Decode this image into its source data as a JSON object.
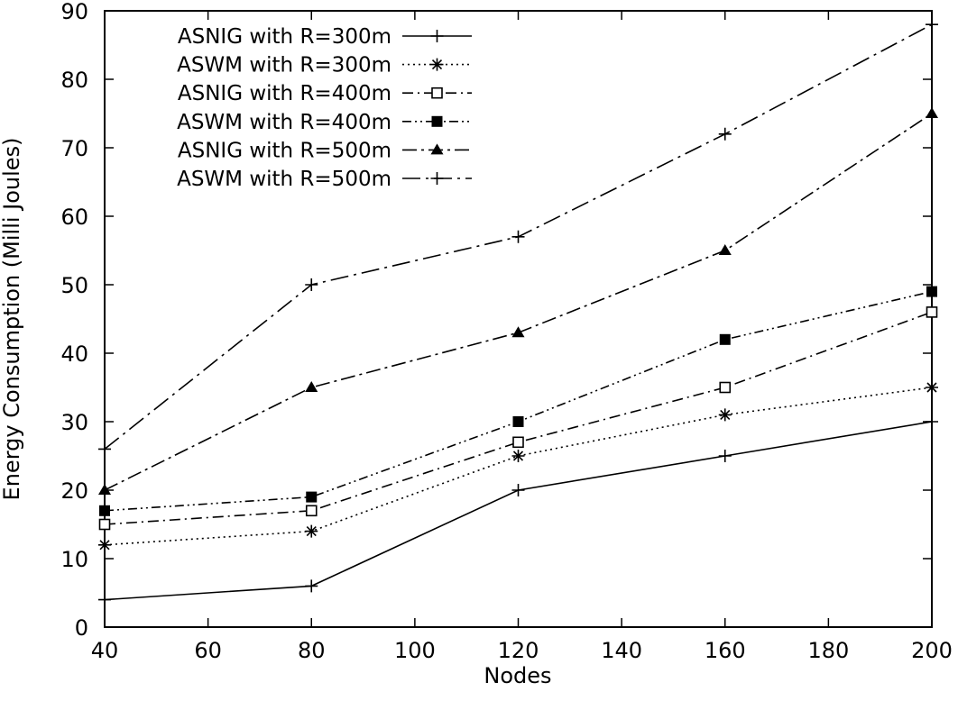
{
  "chart_data": {
    "type": "line",
    "title": "",
    "xlabel": "Nodes",
    "ylabel": "Energy Consumption (Milli Joules)",
    "xlim": [
      40,
      200
    ],
    "ylim": [
      0,
      90
    ],
    "xticks": [
      40,
      60,
      80,
      100,
      120,
      140,
      160,
      180,
      200
    ],
    "yticks": [
      0,
      10,
      20,
      30,
      40,
      50,
      60,
      70,
      80,
      90
    ],
    "x": [
      40,
      80,
      120,
      160,
      200
    ],
    "legend_position": "top-left",
    "series": [
      {
        "name": "ASNIG with R=300m",
        "values": [
          4,
          6,
          20,
          25,
          30
        ],
        "marker": "plus",
        "dash": "solid",
        "color": "#000000"
      },
      {
        "name": "ASWM with R=300m",
        "values": [
          12,
          14,
          25,
          31,
          35
        ],
        "marker": "star",
        "dash": "dotted",
        "color": "#000000"
      },
      {
        "name": "ASNIG with R=400m",
        "values": [
          15,
          17,
          27,
          35,
          46
        ],
        "marker": "open-square",
        "dash": "dash-dot",
        "color": "#000000"
      },
      {
        "name": "ASWM with R=400m",
        "values": [
          17,
          19,
          30,
          42,
          49
        ],
        "marker": "filled-square",
        "dash": "dash-dot-dot",
        "color": "#000000"
      },
      {
        "name": "ASNIG with R=500m",
        "values": [
          20,
          35,
          43,
          55,
          75
        ],
        "marker": "filled-triangle",
        "dash": "long-dash-dot",
        "color": "#000000"
      },
      {
        "name": "ASWM with R=500m",
        "values": [
          26,
          50,
          57,
          72,
          88
        ],
        "marker": "plus",
        "dash": "long-dash-dot-2",
        "color": "#000000"
      }
    ]
  }
}
